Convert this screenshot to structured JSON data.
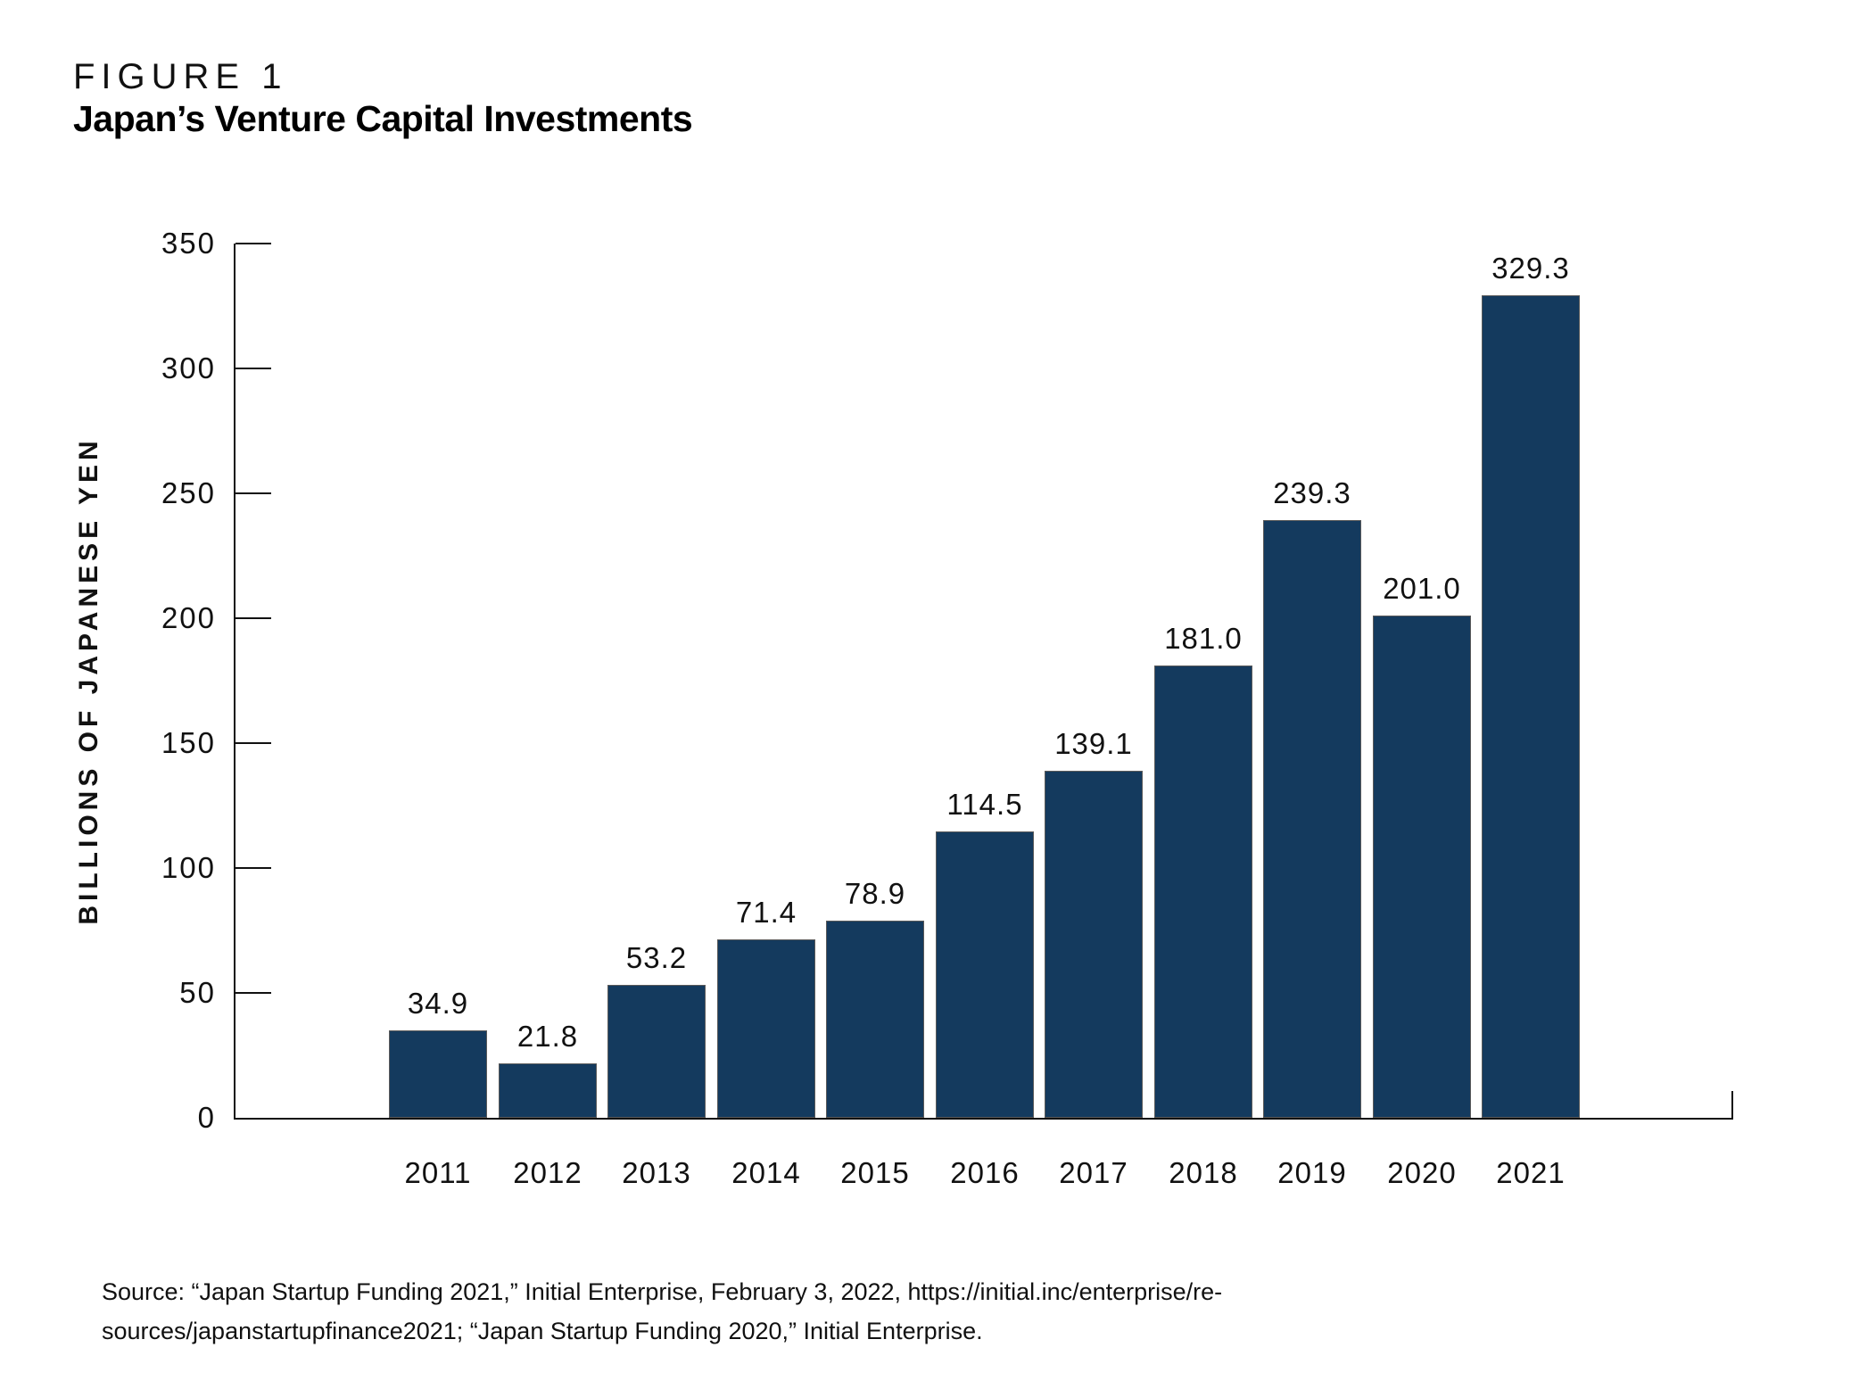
{
  "figure": {
    "label": "FIGURE 1",
    "title": "Japan’s Venture Capital Investments"
  },
  "chart_data": {
    "type": "bar",
    "title": "Japan’s Venture Capital Investments",
    "categories": [
      "2011",
      "2012",
      "2013",
      "2014",
      "2015",
      "2016",
      "2017",
      "2018",
      "2019",
      "2020",
      "2021"
    ],
    "values": [
      34.9,
      21.8,
      53.2,
      71.4,
      78.9,
      114.5,
      139.1,
      181.0,
      239.3,
      201.0,
      329.3
    ],
    "value_labels": [
      "34.9",
      "21.8",
      "53.2",
      "71.4",
      "78.9",
      "114.5",
      "139.1",
      "181.0",
      "239.3",
      "201.0",
      "329.3"
    ],
    "xlabel": "",
    "ylabel": "BILLIONS OF JAPANESE YEN",
    "ylim": [
      0,
      350
    ],
    "yticks": [
      0,
      50,
      100,
      150,
      200,
      250,
      300,
      350
    ],
    "grid": false,
    "legend_position": "none",
    "bar_color": "#143A5E",
    "axis_color": "#111111"
  },
  "source": {
    "lines": [
      "Source: “Japan Startup Funding 2021,” Initial Enterprise, February 3, 2022, https://initial.inc/enterprise/re-",
      "sources/japanstartupfinance2021; “Japan Startup Funding 2020,” Initial Enterprise."
    ]
  }
}
